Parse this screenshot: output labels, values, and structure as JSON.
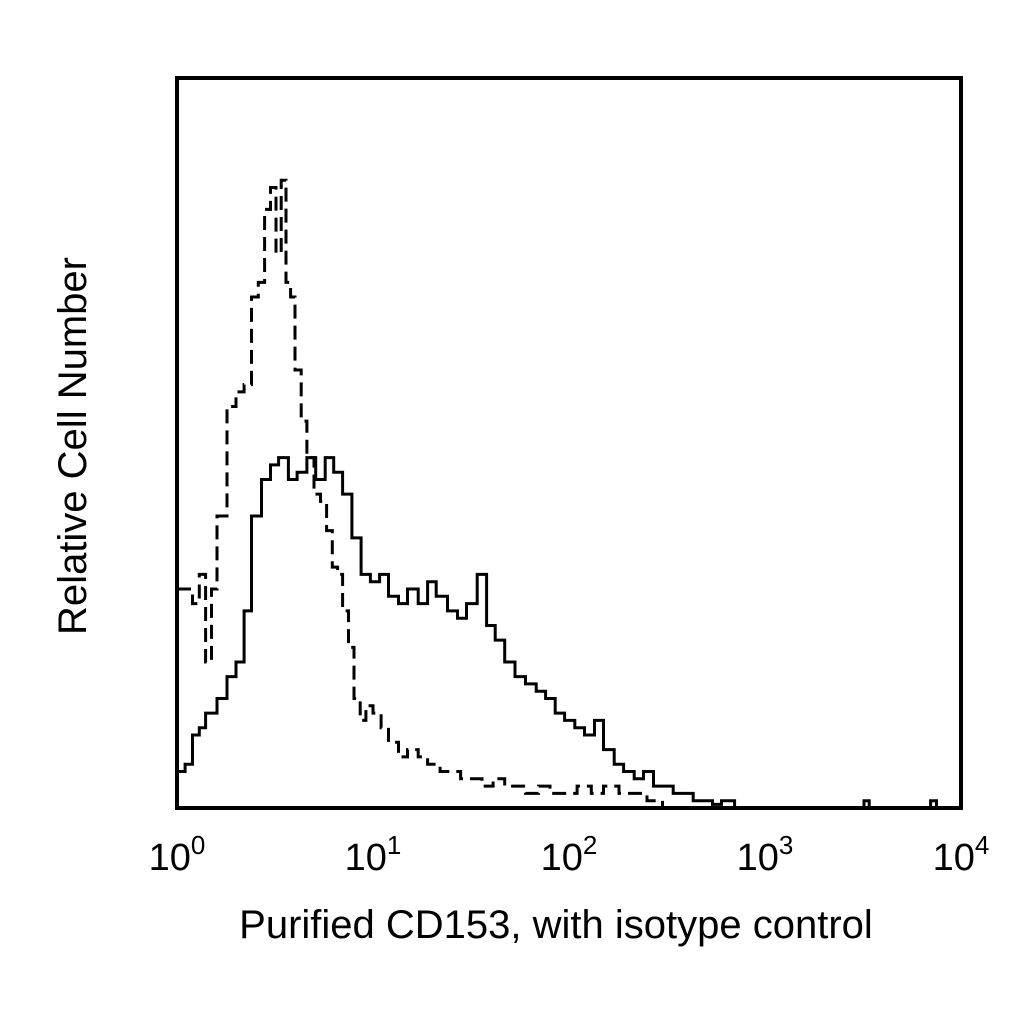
{
  "chart_data": {
    "type": "line",
    "title": "",
    "xlabel": "Purified CD153, with isotype control",
    "ylabel": "Relative Cell Number",
    "xscale": "log",
    "xlim": [
      1,
      10000
    ],
    "ylim": [
      0,
      100
    ],
    "grid": false,
    "legend": "none",
    "x_ticks": [
      {
        "base": "10",
        "exp": "0",
        "value": 1
      },
      {
        "base": "10",
        "exp": "1",
        "value": 10
      },
      {
        "base": "10",
        "exp": "2",
        "value": 100
      },
      {
        "base": "10",
        "exp": "3",
        "value": 1000
      },
      {
        "base": "10",
        "exp": "4",
        "value": 10000
      }
    ],
    "series": [
      {
        "style": "solid",
        "color": "#000000",
        "x": [
          1.0,
          1.1,
          1.2,
          1.3,
          1.4,
          1.6,
          1.8,
          2.0,
          2.2,
          2.4,
          2.7,
          3.0,
          3.3,
          3.7,
          4.1,
          4.6,
          5.1,
          5.7,
          6.3,
          7.0,
          7.8,
          8.7,
          9.7,
          10.8,
          12,
          13.5,
          15,
          17,
          19,
          21,
          24,
          27,
          30,
          34,
          38,
          42,
          47,
          53,
          60,
          68,
          76,
          85,
          95,
          107,
          120,
          135,
          150,
          170,
          190,
          215,
          240,
          270,
          300,
          340,
          380,
          430,
          480,
          540,
          600,
          700,
          3200,
          3400,
          7000,
          7500
        ],
        "y": [
          5,
          6,
          10,
          11,
          13,
          15,
          18,
          20,
          27,
          40,
          45,
          47,
          48,
          45,
          46,
          48,
          45,
          48,
          46,
          43,
          37,
          32,
          31,
          32,
          29,
          28,
          30,
          28,
          31,
          29,
          27,
          26,
          28,
          32,
          25,
          23,
          20,
          18,
          17,
          16,
          15,
          13,
          12,
          11,
          10,
          12,
          8,
          6,
          5,
          4,
          5,
          3,
          3,
          2,
          2,
          1,
          1,
          0.5,
          1,
          0,
          1,
          0,
          1,
          0
        ]
      },
      {
        "style": "dashed",
        "color": "#000000",
        "x": [
          1.0,
          1.1,
          1.2,
          1.3,
          1.4,
          1.5,
          1.6,
          1.8,
          2.0,
          2.2,
          2.4,
          2.6,
          2.8,
          3.0,
          3.2,
          3.4,
          3.6,
          3.8,
          4.0,
          4.3,
          4.6,
          5.0,
          5.4,
          5.8,
          6.2,
          6.6,
          7.0,
          7.5,
          8.0,
          8.6,
          9.2,
          10,
          11,
          12,
          13.5,
          15,
          17,
          19,
          22,
          25,
          28,
          32,
          36,
          41,
          47,
          53,
          60,
          70,
          80,
          95,
          110,
          130,
          150,
          180,
          210,
          250,
          300
        ],
        "y": [
          30,
          30,
          28,
          32,
          20,
          30,
          40,
          55,
          57,
          58,
          70,
          72,
          82,
          85,
          76,
          86,
          72,
          70,
          60,
          53,
          48,
          43,
          42,
          38,
          33,
          32,
          27,
          22,
          15,
          12,
          14,
          13,
          11,
          9,
          7,
          8,
          7,
          6,
          5,
          5,
          4,
          4,
          3,
          4,
          3,
          3,
          2,
          3,
          2,
          2,
          3,
          2,
          3,
          2,
          2,
          1,
          0
        ]
      }
    ]
  }
}
